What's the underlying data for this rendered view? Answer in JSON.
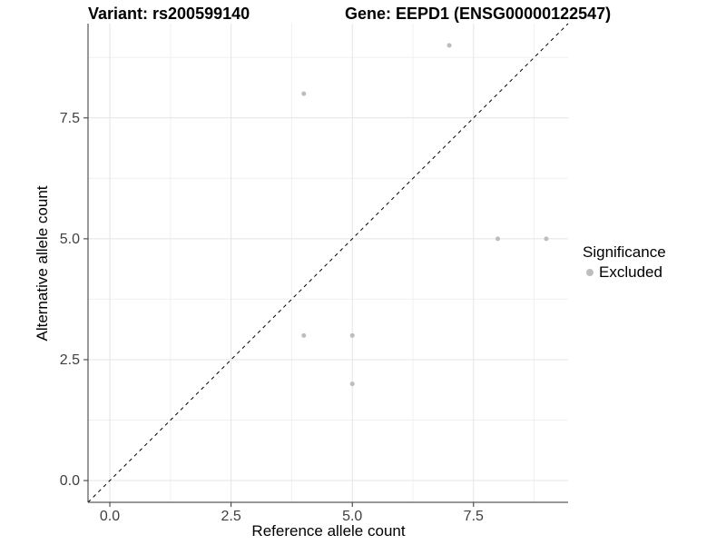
{
  "figure": {
    "title_left": "Variant: rs200599140",
    "title_right": "Gene: EEPD1 (ENSG00000122547)"
  },
  "axes": {
    "x_title": "Reference allele count",
    "y_title": "Alternative allele count"
  },
  "legend": {
    "title": "Significance",
    "items": [
      {
        "label": "Excluded",
        "color": "#bdbdbd",
        "marker": "circle"
      }
    ]
  },
  "chart_data": {
    "type": "scatter",
    "title_left": "Variant: rs200599140",
    "title_right": "Gene: EEPD1 (ENSG00000122547)",
    "xlabel": "Reference allele count",
    "ylabel": "Alternative allele count",
    "xlim": [
      -0.45,
      9.45
    ],
    "ylim": [
      -0.45,
      9.45
    ],
    "x_ticks": [
      0,
      2.5,
      5,
      7.5
    ],
    "x_tick_labels": [
      "0.0",
      "2.5",
      "5.0",
      "7.5"
    ],
    "y_ticks": [
      0,
      2.5,
      5,
      7.5
    ],
    "y_tick_labels": [
      "0.0",
      "2.5",
      "5.0",
      "7.5"
    ],
    "x_minor_ticks": [
      1.25,
      3.75,
      6.25,
      8.75
    ],
    "y_minor_ticks": [
      1.25,
      3.75,
      6.25,
      8.75
    ],
    "grid": "major+minor",
    "legend_position": "right",
    "series": [
      {
        "name": "Excluded",
        "marker": "circle",
        "color": "#bdbdbd",
        "points": [
          {
            "x": 7,
            "y": 9
          },
          {
            "x": 4,
            "y": 8
          },
          {
            "x": 8,
            "y": 5
          },
          {
            "x": 9,
            "y": 5
          },
          {
            "x": 4,
            "y": 3
          },
          {
            "x": 5,
            "y": 3
          },
          {
            "x": 5,
            "y": 2
          }
        ]
      }
    ],
    "reference_line": {
      "kind": "identity",
      "slope": 1,
      "intercept": 0,
      "style": "dashed",
      "color": "#000000"
    }
  },
  "style": {
    "background": "#ffffff",
    "point_color": "#bdbdbd",
    "point_radius": 2.5,
    "grid_major_color": "#e4e4e4",
    "grid_minor_color": "#f0f0f0",
    "axis_line_color": "#333333",
    "tick_label_color": "#404040",
    "dashed_line_color": "#000000"
  }
}
